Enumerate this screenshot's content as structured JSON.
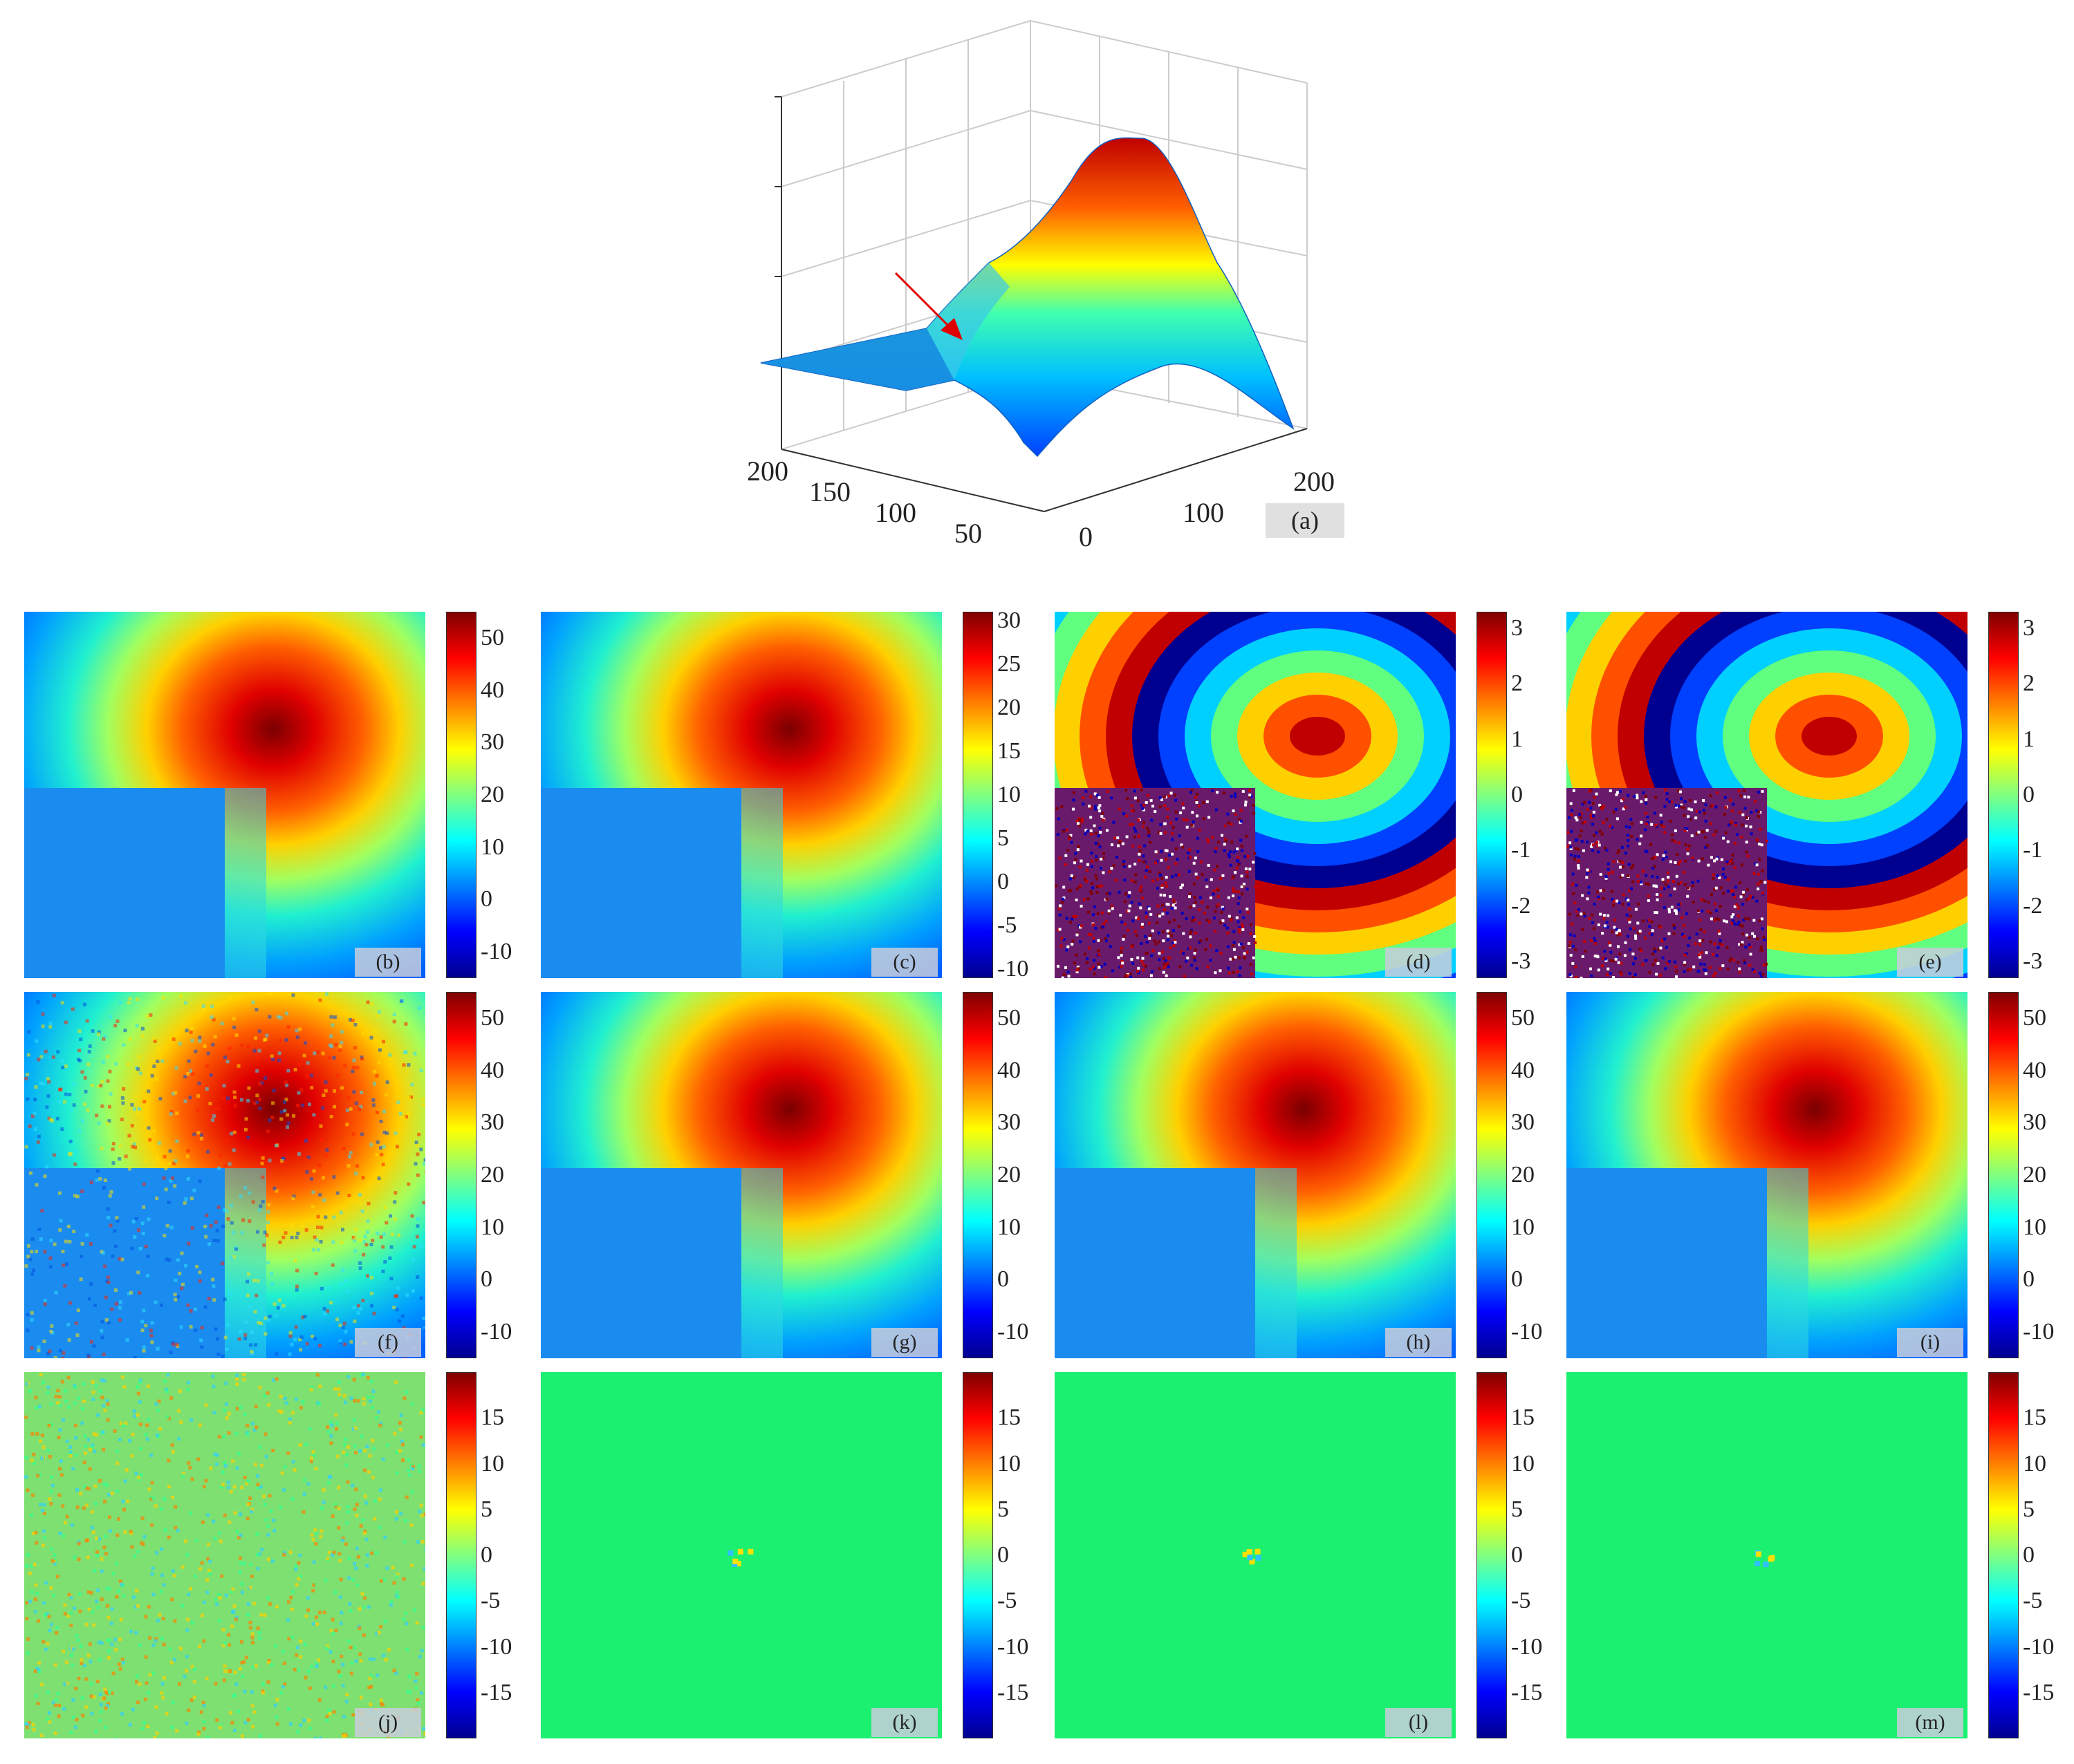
{
  "surface": {
    "label": "(a)",
    "y_axis_ticks": [
      "200",
      "150",
      "100",
      "50"
    ],
    "x_axis_ticks": [
      "0",
      "100",
      "200"
    ]
  },
  "colormap": [
    "#00008f",
    "#0000ff",
    "#0080ff",
    "#00ffff",
    "#80ff80",
    "#ffff00",
    "#ff8000",
    "#ff0000",
    "#800000"
  ],
  "panels": [
    {
      "id": "b",
      "label": "(b)",
      "kind": "smooth",
      "noise": 0,
      "range": [
        -15,
        55
      ],
      "ticks": [
        50,
        40,
        30,
        20,
        10,
        0,
        -10
      ]
    },
    {
      "id": "c",
      "label": "(c)",
      "kind": "smooth",
      "noise": 0,
      "range": [
        -11,
        31
      ],
      "ticks": [
        30,
        25,
        20,
        15,
        10,
        5,
        0,
        -5,
        -10
      ]
    },
    {
      "id": "d",
      "label": "(d)",
      "kind": "wrapped",
      "noise": 0,
      "range": [
        -3.3,
        3.3
      ],
      "ticks": [
        3,
        2,
        1,
        0,
        -1,
        -2,
        -3
      ]
    },
    {
      "id": "e",
      "label": "(e)",
      "kind": "wrapped",
      "noise": 0,
      "range": [
        -3.3,
        3.3
      ],
      "ticks": [
        3,
        2,
        1,
        0,
        -1,
        -2,
        -3
      ]
    },
    {
      "id": "f",
      "label": "(f)",
      "kind": "smooth",
      "noise": 1,
      "range": [
        -15,
        55
      ],
      "ticks": [
        50,
        40,
        30,
        20,
        10,
        0,
        -10
      ]
    },
    {
      "id": "g",
      "label": "(g)",
      "kind": "smooth",
      "noise": 0,
      "range": [
        -15,
        55
      ],
      "ticks": [
        50,
        40,
        30,
        20,
        10,
        0,
        -10
      ]
    },
    {
      "id": "h",
      "label": "(h)",
      "kind": "smooth",
      "noise": 0,
      "range": [
        -15,
        55
      ],
      "ticks": [
        50,
        40,
        30,
        20,
        10,
        0,
        -10
      ]
    },
    {
      "id": "i",
      "label": "(i)",
      "kind": "smooth",
      "noise": 0,
      "range": [
        -15,
        55
      ],
      "ticks": [
        50,
        40,
        30,
        20,
        10,
        0,
        -10
      ]
    },
    {
      "id": "j",
      "label": "(j)",
      "kind": "error",
      "noise": 1,
      "range": [
        -20,
        20
      ],
      "ticks": [
        15,
        10,
        5,
        0,
        -5,
        -10,
        -15
      ]
    },
    {
      "id": "k",
      "label": "(k)",
      "kind": "error",
      "noise": 0,
      "range": [
        -20,
        20
      ],
      "ticks": [
        15,
        10,
        5,
        0,
        -5,
        -10,
        -15
      ]
    },
    {
      "id": "l",
      "label": "(l)",
      "kind": "error",
      "noise": 0,
      "range": [
        -20,
        20
      ],
      "ticks": [
        15,
        10,
        5,
        0,
        -5,
        -10,
        -15
      ]
    },
    {
      "id": "m",
      "label": "(m)",
      "kind": "error",
      "noise": 0,
      "range": [
        -20,
        20
      ],
      "ticks": [
        15,
        10,
        5,
        0,
        -5,
        -10,
        -15
      ]
    }
  ],
  "chart_data": [
    {
      "type": "surface",
      "panel": "(a)",
      "x_ticks": [
        0,
        100,
        200
      ],
      "y_ticks": [
        200,
        150,
        100,
        50
      ],
      "description_values": "3D phase surface with a single peak and a flat step region (arrow marks the discontinuity)"
    },
    {
      "type": "heatmap",
      "panel": "(b)",
      "colorbar_ticks": [
        50,
        40,
        30,
        20,
        10,
        0,
        -10
      ]
    },
    {
      "type": "heatmap",
      "panel": "(c)",
      "colorbar_ticks": [
        30,
        25,
        20,
        15,
        10,
        5,
        0,
        -5,
        -10
      ]
    },
    {
      "type": "heatmap",
      "panel": "(d)",
      "colorbar_ticks": [
        3,
        2,
        1,
        0,
        -1,
        -2,
        -3
      ]
    },
    {
      "type": "heatmap",
      "panel": "(e)",
      "colorbar_ticks": [
        3,
        2,
        1,
        0,
        -1,
        -2,
        -3
      ]
    },
    {
      "type": "heatmap",
      "panel": "(f)",
      "colorbar_ticks": [
        50,
        40,
        30,
        20,
        10,
        0,
        -10
      ]
    },
    {
      "type": "heatmap",
      "panel": "(g)",
      "colorbar_ticks": [
        50,
        40,
        30,
        20,
        10,
        0,
        -10
      ]
    },
    {
      "type": "heatmap",
      "panel": "(h)",
      "colorbar_ticks": [
        50,
        40,
        30,
        20,
        10,
        0,
        -10
      ]
    },
    {
      "type": "heatmap",
      "panel": "(i)",
      "colorbar_ticks": [
        50,
        40,
        30,
        20,
        10,
        0,
        -10
      ]
    },
    {
      "type": "heatmap",
      "panel": "(j)",
      "colorbar_ticks": [
        15,
        10,
        5,
        0,
        -5,
        -10,
        -15
      ]
    },
    {
      "type": "heatmap",
      "panel": "(k)",
      "colorbar_ticks": [
        15,
        10,
        5,
        0,
        -5,
        -10,
        -15
      ]
    },
    {
      "type": "heatmap",
      "panel": "(l)",
      "colorbar_ticks": [
        15,
        10,
        5,
        0,
        -5,
        -10,
        -15
      ]
    },
    {
      "type": "heatmap",
      "panel": "(m)",
      "colorbar_ticks": [
        15,
        10,
        5,
        0,
        -5,
        -10,
        -15
      ]
    }
  ]
}
